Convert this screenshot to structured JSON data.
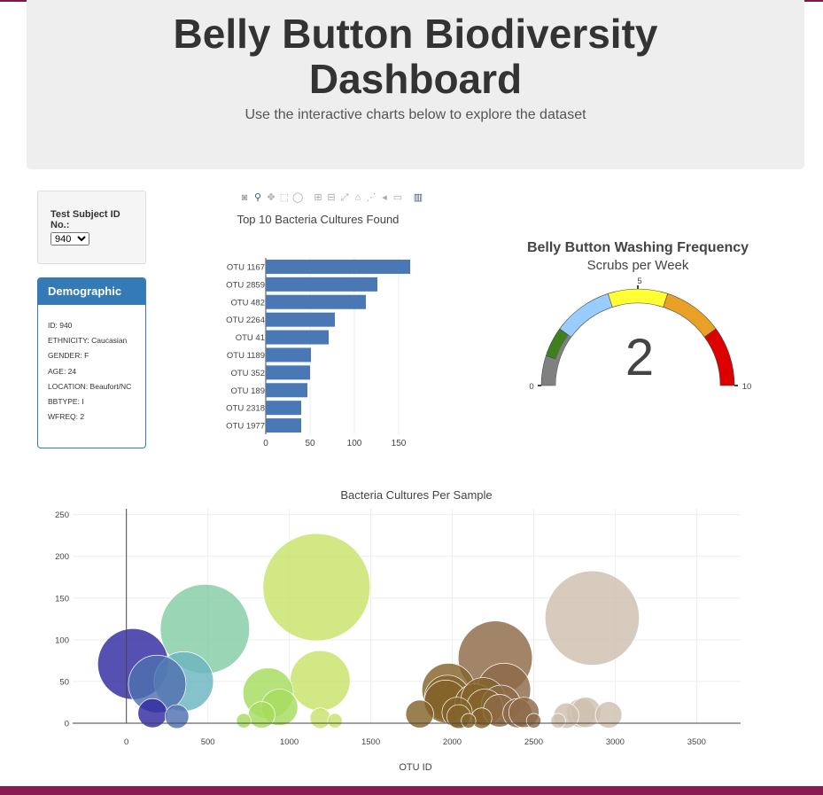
{
  "header": {
    "title_line1": "Belly Button Biodiversity",
    "title_line2": "Dashboard",
    "subtitle": "Use the interactive charts below to explore the dataset"
  },
  "selector": {
    "label": "Test Subject ID No.:",
    "selected": "940",
    "options": [
      "940"
    ]
  },
  "demographics": {
    "heading": "Demographic Info",
    "items": [
      "ID: 940",
      "ETHNICITY: Caucasian",
      "GENDER: F",
      "AGE: 24",
      "LOCATION: Beaufort/NC",
      "BBTYPE: I",
      "WFREQ: 2"
    ]
  },
  "modebar_icons": [
    "camera-icon",
    "zoom-icon",
    "pan-icon",
    "box-select-icon",
    "lasso-icon",
    "zoom-in-icon",
    "zoom-out-icon",
    "autoscale-icon",
    "reset-axes-icon",
    "spike-lines-icon",
    "hover-closest-icon",
    "hover-compare-icon",
    "plotly-logo-icon"
  ],
  "chart_data": [
    {
      "type": "bar",
      "orientation": "horizontal",
      "title": "Top 10 Bacteria Cultures Found",
      "categories": [
        "OTU 1167",
        "OTU 2859",
        "OTU 482",
        "OTU 2264",
        "OTU 41",
        "OTU 1189",
        "OTU 352",
        "OTU 189",
        "OTU 2318",
        "OTU 1977"
      ],
      "values": [
        163,
        126,
        113,
        78,
        71,
        51,
        50,
        47,
        40,
        40
      ],
      "xticks": [
        0,
        50,
        100,
        150
      ],
      "xlim": [
        0,
        170
      ],
      "color": "#4a78b4"
    },
    {
      "type": "gauge",
      "title": "Belly Button Washing Frequency",
      "subtitle": "Scrubs per Week",
      "value": 2,
      "range": [
        0,
        10
      ],
      "tick_labels": [
        "0",
        "5",
        "10"
      ],
      "band_colors": [
        "#808080",
        "#3f7f1f",
        "#99ccff",
        "#ffff33",
        "#e8a026",
        "#dd0000"
      ]
    },
    {
      "type": "scatter",
      "title": "Bacteria Cultures Per Sample",
      "xlabel": "OTU ID",
      "xticks": [
        0,
        500,
        1000,
        1500,
        2000,
        2500,
        3000,
        3500
      ],
      "yticks": [
        0,
        50,
        100,
        150,
        200,
        250
      ],
      "xlim": [
        -330,
        3770
      ],
      "ylim": [
        0,
        257
      ],
      "points": [
        {
          "x": 1167,
          "y": 163,
          "color": "#c7e36a"
        },
        {
          "x": 2859,
          "y": 126,
          "color": "#cdbfae"
        },
        {
          "x": 482,
          "y": 113,
          "color": "#84cca6"
        },
        {
          "x": 2264,
          "y": 78,
          "color": "#8d6a48"
        },
        {
          "x": 41,
          "y": 71,
          "color": "#2f2aa0"
        },
        {
          "x": 1189,
          "y": 51,
          "color": "#c7e36a"
        },
        {
          "x": 352,
          "y": 50,
          "color": "#6bb4c0"
        },
        {
          "x": 189,
          "y": 47,
          "color": "#4f70b0"
        },
        {
          "x": 2318,
          "y": 40,
          "color": "#8d6a48"
        },
        {
          "x": 1977,
          "y": 40,
          "color": "#84632b"
        },
        {
          "x": 870,
          "y": 36,
          "color": "#a6dc5e"
        },
        {
          "x": 1970,
          "y": 30,
          "color": "#84632b"
        },
        {
          "x": 1960,
          "y": 26,
          "color": "#84632b"
        },
        {
          "x": 2140,
          "y": 23,
          "color": "#84632b"
        },
        {
          "x": 2190,
          "y": 28,
          "color": "#84632b"
        },
        {
          "x": 2300,
          "y": 22,
          "color": "#8d6a48"
        },
        {
          "x": 2200,
          "y": 19,
          "color": "#84632b"
        },
        {
          "x": 940,
          "y": 19,
          "color": "#a6dc5e"
        },
        {
          "x": 2290,
          "y": 15,
          "color": "#8d6a48"
        },
        {
          "x": 2030,
          "y": 13,
          "color": "#84632b"
        },
        {
          "x": 2400,
          "y": 12,
          "color": "#8d6a48"
        },
        {
          "x": 2440,
          "y": 13,
          "color": "#8d6a48"
        },
        {
          "x": 2790,
          "y": 12,
          "color": "#cdbfae"
        },
        {
          "x": 2820,
          "y": 13,
          "color": "#cdbfae"
        },
        {
          "x": 2960,
          "y": 10,
          "color": "#cdbfae"
        },
        {
          "x": 2700,
          "y": 9,
          "color": "#cdbfae"
        },
        {
          "x": 160,
          "y": 12,
          "color": "#2f2aa0"
        },
        {
          "x": 1800,
          "y": 11,
          "color": "#84632b"
        },
        {
          "x": 830,
          "y": 10,
          "color": "#a6dc5e"
        },
        {
          "x": 310,
          "y": 8,
          "color": "#4f70b0"
        },
        {
          "x": 2180,
          "y": 6,
          "color": "#84632b"
        },
        {
          "x": 2040,
          "y": 8,
          "color": "#84632b"
        },
        {
          "x": 1190,
          "y": 6,
          "color": "#c7e36a"
        },
        {
          "x": 2650,
          "y": 3,
          "color": "#cdbfae"
        },
        {
          "x": 720,
          "y": 3,
          "color": "#a6dc5e"
        },
        {
          "x": 1280,
          "y": 3,
          "color": "#c7e36a"
        },
        {
          "x": 2100,
          "y": 3,
          "color": "#84632b"
        },
        {
          "x": 2500,
          "y": 3,
          "color": "#8d6a48"
        }
      ]
    }
  ]
}
